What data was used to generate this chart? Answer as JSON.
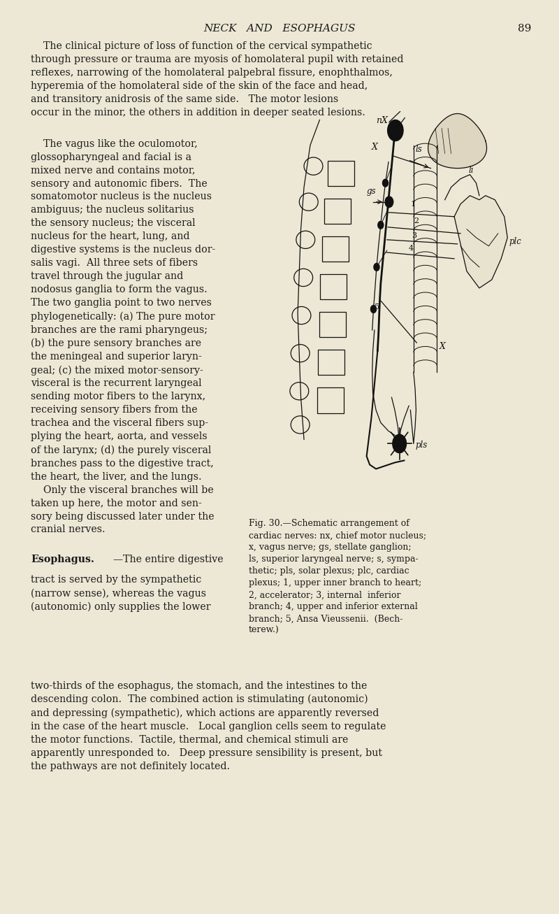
{
  "page_color": "#ede8d5",
  "text_color": "#1a1a1a",
  "header_title": "NECK   AND   ESOPHAGUS",
  "header_page": "89",
  "top_para": "    The clinical picture of loss of function of the cervical sympathetic\nthrough pressure or trauma are myosis of homolateral pupil with retained\nreflexes, narrowing of the homolateral palpebral fissure, enophthalmos,\nhyperemia of the homolateral side of the skin of the face and head,\nand transitory anidrosis of the same side.   The motor lesions\noccur in the minor, the others in addition in deeper seated lesions.",
  "left_col": "    The vagus like the oculomotor,\nglossopharyngeal and facial is a\nmixed nerve and contains motor,\nsensory and autonomic fibers.  The\nsomatomotor nucleus is the nucleus\nambiguus; the nucleus solitarius\nthe sensory nucleus; the visceral\nnucleus for the heart, lung, and\ndigestive systems is the nucleus dor-\nsalis vagi.  All three sets of fibers\ntravel through the jugular and\nnodosus ganglia to form the vagus.\nThe two ganglia point to two nerves\nphylogenetically: (a) The pure motor\nbranches are the rami pharyngeus;\n(b) the pure sensory branches are\nthe meningeal and superior laryn-\ngeal; (c) the mixed motor-sensory-\nvisceral is the recurrent laryngeal\nsending motor fibers to the larynx,\nreceiving sensory fibers from the\ntrachea and the visceral fibers sup-\nplying the heart, aorta, and vessels\nof the larynx; (d) the purely visceral\nbranches pass to the digestive tract,\nthe heart, the liver, and the lungs.\n    Only the visceral branches will be\ntaken up here, the motor and sen-\nsory being discussed later under the\ncranial nerves.",
  "esoph_bold": "Esophagus.",
  "esoph_dash": "—The entire digestive",
  "esoph_rest": "tract is served by the sympathetic\n(narrow sense), whereas the vagus\n(autonomic) only supplies the lower",
  "caption": "Fig. 30.—Schematic arrangement of\ncardiac nerves: nx, chief motor nucleus;\nx, vagus nerve; gs, stellate ganglion;\nls, superior laryngeal nerve; s, sympa-\nthetic; pls, solar plexus; plc, cardiac\nplexus; 1, upper inner branch to heart;\n2, accelerator; 3, internal  inferior\nbranch; 4, upper and inferior external\nbranch; 5, Ansa Vieussenii.  (Bech-\nterew.)",
  "bottom_para": "two-thirds of the esophagus, the stomach, and the intestines to the\ndescending colon.  The combined action is stimulating (autonomic)\nand depressing (sympathetic), which actions are apparently reversed\nin the case of the heart muscle.   Local ganglion cells seem to regulate\nthe motor functions.  Tactile, thermal, and chemical stimuli are\napparently unresponded to.   Deep pressure sensibility is present, but\nthe pathways are not definitely located.",
  "font_family": "DejaVu Serif",
  "draw_color": "#111111"
}
